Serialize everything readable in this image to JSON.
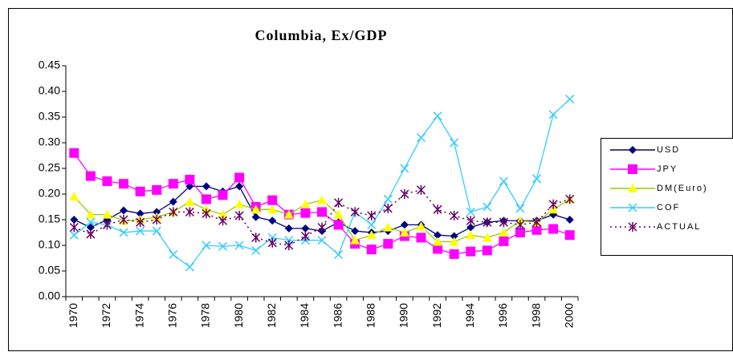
{
  "chart_data": {
    "type": "line",
    "title": "Columbia, Ex/GDP",
    "categories": [
      "1970",
      null,
      "1972",
      null,
      "1974",
      null,
      "1976",
      null,
      "1978",
      null,
      "1980",
      null,
      "1982",
      null,
      "1984",
      null,
      "1986",
      null,
      "1988",
      null,
      "1990",
      null,
      "1992",
      null,
      "1994",
      null,
      "1996",
      null,
      "1998",
      null,
      "2000"
    ],
    "series": [
      {
        "name": "USD",
        "color": "#000080",
        "marker": "diamond",
        "line_style": "solid",
        "values": [
          0.15,
          0.135,
          0.15,
          0.168,
          0.162,
          0.165,
          0.185,
          0.215,
          0.215,
          0.205,
          0.215,
          0.155,
          0.148,
          0.133,
          0.133,
          0.128,
          0.145,
          0.128,
          0.125,
          0.128,
          0.14,
          0.14,
          0.12,
          0.118,
          0.135,
          0.145,
          0.148,
          0.148,
          0.148,
          0.16,
          0.15
        ]
      },
      {
        "name": "JPY",
        "color": "#ff00ff",
        "marker": "square",
        "line_style": "solid",
        "values": [
          0.28,
          0.235,
          0.225,
          0.22,
          0.205,
          0.208,
          0.22,
          0.228,
          0.19,
          0.198,
          0.232,
          0.175,
          0.188,
          0.16,
          0.163,
          0.165,
          0.14,
          0.103,
          0.092,
          0.103,
          0.118,
          0.115,
          0.093,
          0.083,
          0.088,
          0.09,
          0.108,
          0.125,
          0.13,
          0.132,
          0.12
        ]
      },
      {
        "name": "DM(Euro)",
        "color": "#99cc00",
        "marker": "triangle",
        "line_style": "solid",
        "values": [
          0.195,
          0.16,
          0.16,
          0.148,
          0.15,
          0.155,
          0.165,
          0.185,
          0.17,
          0.16,
          0.18,
          0.17,
          0.17,
          0.16,
          0.18,
          0.188,
          0.16,
          0.11,
          0.12,
          0.135,
          0.125,
          0.137,
          0.107,
          0.107,
          0.12,
          0.115,
          0.125,
          0.148,
          0.145,
          0.17,
          0.19
        ]
      },
      {
        "name": "COF",
        "color": "#33ccff",
        "marker": "x",
        "line_style": "solid",
        "values": [
          0.12,
          0.145,
          0.14,
          0.125,
          0.128,
          0.128,
          0.082,
          0.058,
          0.1,
          0.098,
          0.1,
          0.09,
          0.115,
          0.11,
          0.11,
          0.11,
          0.082,
          0.165,
          0.14,
          0.19,
          0.25,
          0.31,
          0.352,
          0.3,
          0.165,
          0.175,
          0.225,
          0.172,
          0.23,
          0.355,
          0.385
        ]
      },
      {
        "name": "ACTUAL",
        "color": "#660066",
        "marker": "asterisk",
        "line_style": "dotted",
        "values": [
          0.135,
          0.122,
          0.14,
          0.15,
          0.145,
          0.15,
          0.165,
          0.165,
          0.162,
          0.148,
          0.158,
          0.115,
          0.105,
          0.1,
          0.118,
          0.135,
          0.183,
          0.165,
          0.158,
          0.172,
          0.2,
          0.208,
          0.17,
          0.158,
          0.148,
          0.145,
          0.145,
          0.14,
          0.145,
          0.18,
          0.19
        ]
      }
    ],
    "ylim": [
      0,
      0.45
    ],
    "yticks": [
      {
        "value": 0,
        "label": "0.00"
      },
      {
        "value": 0.05,
        "label": "0.05"
      },
      {
        "value": 0.1,
        "label": "0.10"
      },
      {
        "value": 0.15,
        "label": "0.15"
      },
      {
        "value": 0.2,
        "label": "0.20"
      },
      {
        "value": 0.25,
        "label": "0.25"
      },
      {
        "value": 0.3,
        "label": "0.30"
      },
      {
        "value": 0.35,
        "label": "0.35"
      },
      {
        "value": 0.4,
        "label": "0.40"
      },
      {
        "value": 0.45,
        "label": "0.45"
      }
    ],
    "grid": false,
    "legend": "right"
  }
}
